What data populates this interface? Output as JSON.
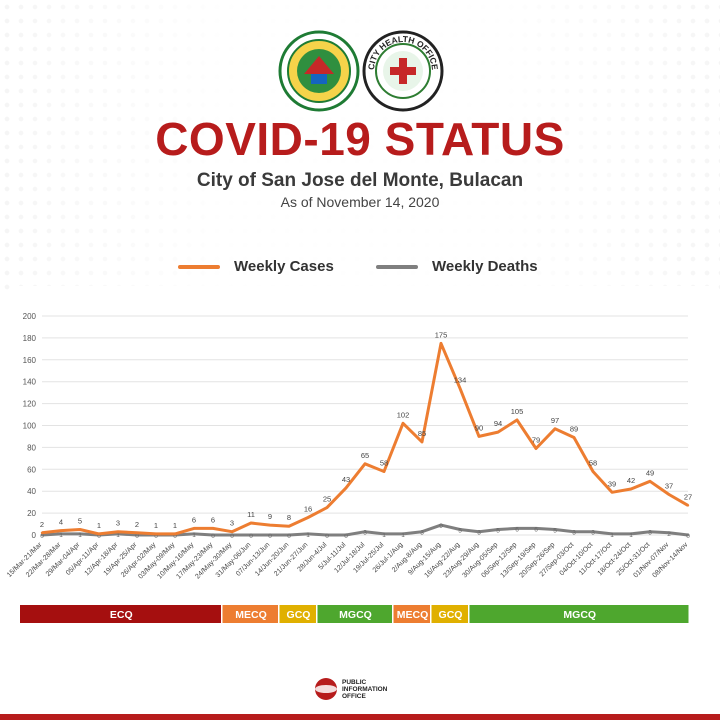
{
  "header": {
    "title": "COVID-19 STATUS",
    "subtitle": "City of San Jose del Monte, Bulacan",
    "as_of": "As of November 14, 2020",
    "left_seal": "city-seal-sjdm",
    "right_seal": "city-health-office-seal",
    "right_seal_text": "CITY HEALTH OFFICE"
  },
  "legend": {
    "cases_label": "Weekly Cases",
    "deaths_label": "Weekly Deaths"
  },
  "footer": {
    "logo_lines": [
      "PUBLIC",
      "INFORMATION",
      "OFFICE"
    ]
  },
  "colors": {
    "cases": "#ed7d31",
    "deaths": "#7f7f7f",
    "title": "#b71c1c",
    "ECQ": "#a50f0f",
    "MECQ": "#ed7d31",
    "GCQ": "#e0b000",
    "MGCQ": "#4ea72e"
  },
  "chart_data": {
    "type": "line",
    "ylim": [
      0,
      200
    ],
    "yticks": [
      0,
      20,
      40,
      60,
      80,
      100,
      120,
      140,
      160,
      180,
      200
    ],
    "grid": true,
    "legend_position": "top",
    "categories": [
      "15/Mar-21/Mar",
      "22/Mar-28/Mar",
      "29/Mar-04/Apr",
      "05/Apr-11/Apr",
      "12/Apr-18/Apr",
      "19/Apr-25/Apr",
      "26/Apr-02/May",
      "03/May-09/May",
      "10/May-16/May",
      "17/May-23/May",
      "24/May-30/May",
      "31/May-06/Jun",
      "07/Jun-13/Jun",
      "14/Jun-20/Jun",
      "21/Jun-27/Jun",
      "28/Jun-4/Jul",
      "5/Jul-11/Jul",
      "12/Jul-18/Jul",
      "19/Jul-25/Jul",
      "26/Jul-1/Aug",
      "2/Aug-8/Aug",
      "9/Aug-15/Aug",
      "16/Aug-22/Aug",
      "23/Aug-29/Aug",
      "30/Aug-05/Sep",
      "06/Sep-12/Sep",
      "13/Sep-19/Sep",
      "20/Sep-26/Sep",
      "27/Sep-03/Oct",
      "04/Oct-10/Oct",
      "11/Oct-17/Oct",
      "18/Oct-24/Oct",
      "25/Oct-31/Oct",
      "01/Nov-07/Nov",
      "08/Nov-14/Nov"
    ],
    "series": [
      {
        "name": "Weekly Cases",
        "values": [
          2,
          4,
          5,
          1,
          3,
          2,
          1,
          1,
          6,
          6,
          3,
          11,
          9,
          8,
          16,
          25,
          43,
          65,
          58,
          102,
          85,
          175,
          134,
          90,
          94,
          105,
          79,
          97,
          89,
          58,
          39,
          42,
          49,
          37,
          27
        ]
      },
      {
        "name": "Weekly Deaths",
        "values": [
          0,
          1,
          1,
          0,
          1,
          0,
          0,
          0,
          1,
          0,
          0,
          0,
          0,
          0,
          1,
          0,
          0,
          3,
          1,
          1,
          3,
          9,
          5,
          3,
          5,
          6,
          6,
          5,
          3,
          3,
          1,
          1,
          3,
          2,
          0
        ]
      }
    ],
    "phases": [
      {
        "label": "ECQ",
        "start": 0,
        "end": 9
      },
      {
        "label": "MECQ",
        "start": 10,
        "end": 12
      },
      {
        "label": "GCQ",
        "start": 13,
        "end": 14
      },
      {
        "label": "MGCQ",
        "start": 15,
        "end": 18
      },
      {
        "label": "MECQ",
        "start": 19,
        "end": 20
      },
      {
        "label": "GCQ",
        "start": 21,
        "end": 22
      },
      {
        "label": "MGCQ",
        "start": 23,
        "end": 34
      }
    ]
  }
}
